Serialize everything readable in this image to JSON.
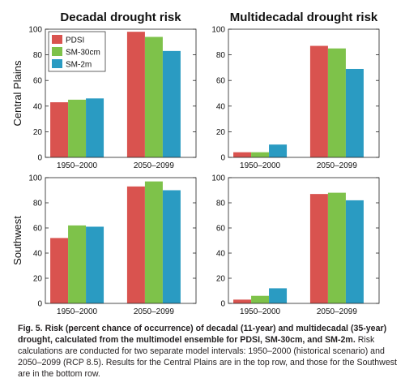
{
  "figure": {
    "column_titles": [
      "Decadal drought risk",
      "Multidecadal drought risk"
    ],
    "row_labels": [
      "Central Plains",
      "Southwest"
    ],
    "colors": {
      "PDSI": "#d9534f",
      "SM-30cm": "#7ec24a",
      "SM-2m": "#2a9bc2"
    }
  },
  "caption": {
    "label": "Fig. 5.",
    "bold_text": "Risk (percent chance of occurrence) of decadal (11-year) and multidecadal (35-year) drought, calculated from the multimodel ensemble for PDSI, SM-30cm, and SM-2m.",
    "text": "Risk calculations are conducted for two separate model intervals: 1950–2000 (historical scenario) and 2050–2099 (RCP 8.5). Results for the Central Plains are in the top row, and those for the Southwest are in the bottom row."
  },
  "chart_data": [
    {
      "type": "bar",
      "title": "Decadal drought risk",
      "ylabel": "Central Plains",
      "categories": [
        "1950–2000",
        "2050–2099"
      ],
      "ylim": [
        0,
        100
      ],
      "yticks": [
        0,
        20,
        40,
        60,
        80,
        100
      ],
      "legend": "top-left",
      "series": [
        {
          "name": "PDSI",
          "values": [
            43,
            98
          ]
        },
        {
          "name": "SM-30cm",
          "values": [
            45,
            94
          ]
        },
        {
          "name": "SM-2m",
          "values": [
            46,
            83
          ]
        }
      ]
    },
    {
      "type": "bar",
      "title": "Multidecadal drought risk",
      "ylabel": "",
      "categories": [
        "1950–2000",
        "2050–2099"
      ],
      "ylim": [
        0,
        100
      ],
      "yticks": [
        0,
        20,
        40,
        60,
        80,
        100
      ],
      "series": [
        {
          "name": "PDSI",
          "values": [
            4,
            87
          ]
        },
        {
          "name": "SM-30cm",
          "values": [
            4,
            85
          ]
        },
        {
          "name": "SM-2m",
          "values": [
            10,
            69
          ]
        }
      ]
    },
    {
      "type": "bar",
      "title": "",
      "ylabel": "Southwest",
      "categories": [
        "1950–2000",
        "2050–2099"
      ],
      "ylim": [
        0,
        100
      ],
      "yticks": [
        0,
        20,
        40,
        60,
        80,
        100
      ],
      "series": [
        {
          "name": "PDSI",
          "values": [
            52,
            93
          ]
        },
        {
          "name": "SM-30cm",
          "values": [
            62,
            97
          ]
        },
        {
          "name": "SM-2m",
          "values": [
            61,
            90
          ]
        }
      ]
    },
    {
      "type": "bar",
      "title": "",
      "ylabel": "",
      "categories": [
        "1950–2000",
        "2050–2099"
      ],
      "ylim": [
        0,
        100
      ],
      "yticks": [
        0,
        20,
        40,
        60,
        80,
        100
      ],
      "series": [
        {
          "name": "PDSI",
          "values": [
            3,
            87
          ]
        },
        {
          "name": "SM-30cm",
          "values": [
            6,
            88
          ]
        },
        {
          "name": "SM-2m",
          "values": [
            12,
            82
          ]
        }
      ]
    }
  ]
}
